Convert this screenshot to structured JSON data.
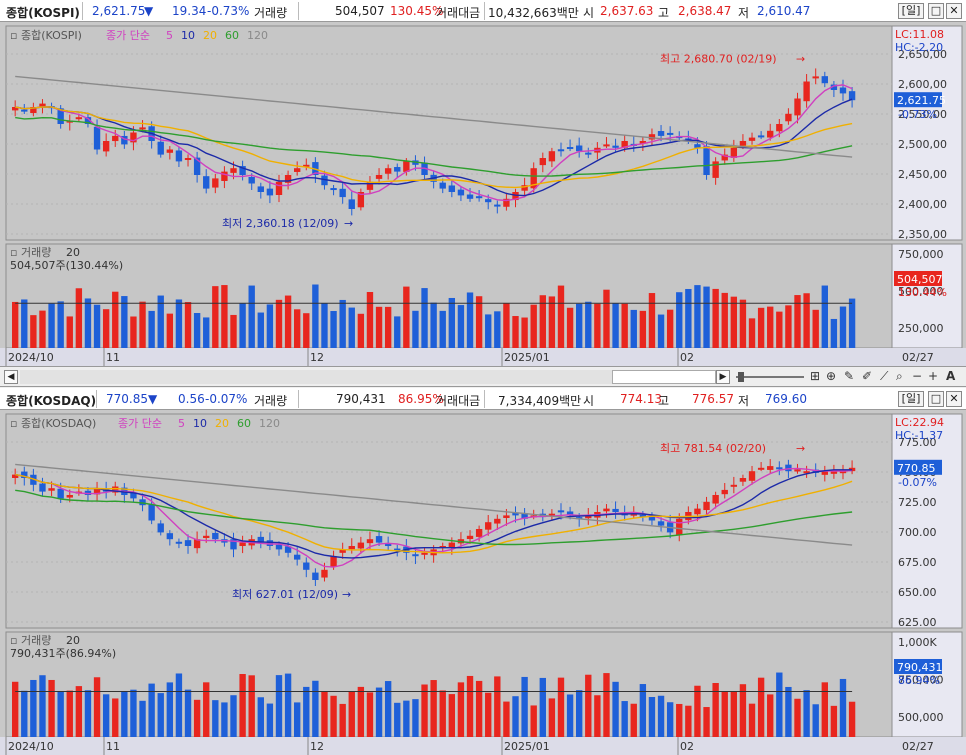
{
  "panels": [
    {
      "id": "kospi",
      "header": {
        "name": "종합(KOSPI)",
        "price": "2,621.75",
        "arrow": "▼",
        "change": "19.34",
        "change_pct": "-0.73%",
        "volume_label": "거래량",
        "volume": "504,507",
        "volume_pct": "130.45%",
        "amount_label": "거래대금",
        "amount": "10,432,663백만",
        "open_label": "시",
        "open": "2,637.63",
        "high_label": "고",
        "high": "2,638.47",
        "low_label": "저",
        "low": "2,610.47",
        "period_button": "일"
      },
      "legend": {
        "name": "종합(KOSPI)",
        "ma_label": "종가 단순",
        "ma": [
          "5",
          "10",
          "20",
          "60",
          "120"
        ]
      },
      "lc": "LC:11.08",
      "hc": "HC:-2.20",
      "price_tag": "2,621.75",
      "price_tag_pct": "-0.73%",
      "high_note": "최고 2,680.70 (02/19)",
      "low_note": "최저 2,360.18 (12/09)",
      "y_ticks": [
        "2,650,00",
        "2,600,00",
        "2,550,00",
        "2,500,00",
        "2,450,00",
        "2,400,00",
        "2,350,00"
      ],
      "vol_legend": "거래량",
      "vol_period": "20",
      "vol_value": "504,507주(130.44%)",
      "vol_ticks": [
        "750,000",
        "500,000",
        "250,000"
      ],
      "vol_tag": "504,507",
      "vol_tag_pct": "130.44%",
      "x_labels": [
        "2024/10",
        "11",
        "12",
        "2025/01",
        "02"
      ],
      "date_end": "02/27"
    },
    {
      "id": "kosdaq",
      "header": {
        "name": "종합(KOSDAQ)",
        "price": "770.85",
        "arrow": "▼",
        "change": "0.56",
        "change_pct": "-0.07%",
        "volume_label": "거래량",
        "volume": "790,431",
        "volume_pct": "86.95%",
        "amount_label": "거래대금",
        "amount": "7,334,409백만",
        "open_label": "시",
        "open": "774.13",
        "high_label": "고",
        "high": "776.57",
        "low_label": "저",
        "low": "769.60",
        "period_button": "일"
      },
      "legend": {
        "name": "종합(KOSDAQ)",
        "ma_label": "종가 단순",
        "ma": [
          "5",
          "10",
          "20",
          "60",
          "120"
        ]
      },
      "lc": "LC:22.94",
      "hc": "HC:-1.37",
      "price_tag": "770.85",
      "price_tag_pct": "-0.07%",
      "high_note": "최고 781.54 (02/20)",
      "low_note": "최저 627.01 (12/09)",
      "y_ticks": [
        "775.00",
        "750.00",
        "725.00",
        "700.00",
        "675.00",
        "650.00",
        "625.00"
      ],
      "vol_legend": "거래량",
      "vol_period": "20",
      "vol_value": "790,431주(86.94%)",
      "vol_ticks": [
        "1,000K",
        "750,000",
        "500,000"
      ],
      "vol_tag": "790,431",
      "vol_tag_pct": "86.94%",
      "x_labels": [
        "2024/10",
        "11",
        "12",
        "2025/01",
        "02"
      ],
      "date_end": "02/27"
    }
  ],
  "colors": {
    "up": "#e8261e",
    "down": "#1e5fd8",
    "ma5": "#d040c0",
    "ma10": "#1c2aa8",
    "ma20": "#f0b000",
    "ma60": "#2e9e2e",
    "ma120": "#8a8a8a",
    "vol_ma": "#333333",
    "chart_bg": "#c8c8c8"
  },
  "toolbar_icons": [
    "scroll-left-icon",
    "scroll-right-icon",
    "zoom-out-icon",
    "zoom-in-icon",
    "font-icon"
  ]
}
